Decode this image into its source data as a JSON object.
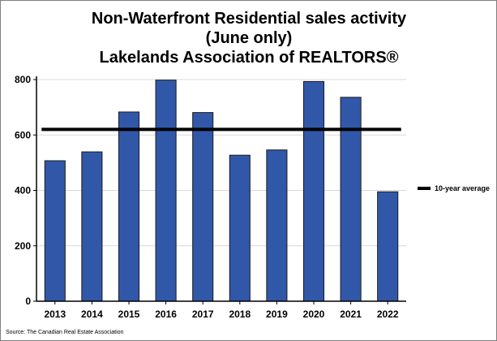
{
  "chart_data": {
    "type": "bar",
    "title": [
      "Non-Waterfront Residential sales activity",
      "(June only)",
      "Lakelands Association of REALTORS®"
    ],
    "categories": [
      "2013",
      "2014",
      "2015",
      "2016",
      "2017",
      "2018",
      "2019",
      "2020",
      "2021",
      "2022"
    ],
    "series": [
      {
        "name": "Sales",
        "values": [
          507,
          539,
          683,
          798,
          681,
          527,
          546,
          793,
          736,
          395
        ]
      },
      {
        "name": "10-year average",
        "type": "line",
        "values": [
          620,
          620,
          620,
          620,
          620,
          620,
          620,
          620,
          620,
          620
        ]
      }
    ],
    "ylim": [
      0,
      800
    ],
    "yticks": [
      0,
      200,
      400,
      600,
      800
    ],
    "xlabel": "",
    "ylabel": "",
    "grid": true,
    "legend": {
      "label": "10-year average",
      "position": "right"
    },
    "colors": {
      "bar": "#3158a8",
      "bar_edge": "#1a1a1a",
      "average_line": "#000000",
      "grid": "#d9d9d9"
    },
    "source": "Source: The Canadian Real Estate Association"
  }
}
